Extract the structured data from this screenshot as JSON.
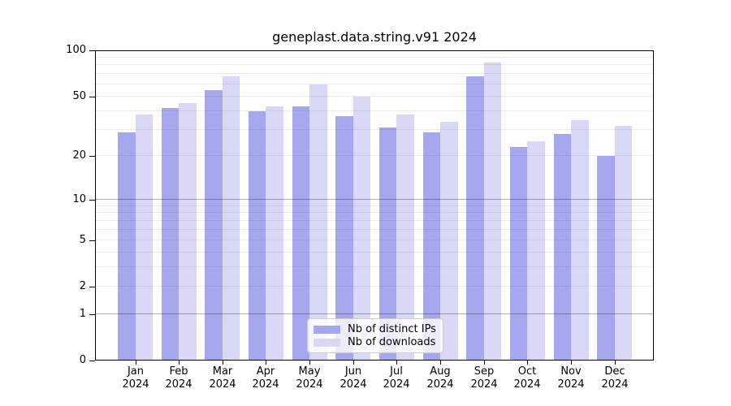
{
  "chart_data": {
    "type": "bar",
    "title": "geneplast.data.string.v91 2024",
    "months": [
      "Jan",
      "Feb",
      "Mar",
      "Apr",
      "May",
      "Jun",
      "Jul",
      "Aug",
      "Sep",
      "Oct",
      "Nov",
      "Dec"
    ],
    "year": "2024",
    "series": [
      {
        "name": "Nb of distinct IPs",
        "color": "#a7a7f0",
        "values": [
          29,
          42,
          55,
          40,
          43,
          37,
          31,
          29,
          68,
          23,
          28,
          20
        ]
      },
      {
        "name": "Nb of downloads",
        "color": "#d9d9f7",
        "values": [
          38,
          45,
          68,
          43,
          60,
          50,
          38,
          34,
          83,
          25,
          35,
          32
        ]
      }
    ],
    "y_scale": "log10(value+1)",
    "ylim": [
      0,
      100
    ],
    "y_ticks": [
      0,
      1,
      2,
      5,
      10,
      20,
      50,
      100
    ],
    "grid": "horizontal",
    "grid_minor_values": [
      2,
      3,
      4,
      5,
      6,
      7,
      8,
      9,
      20,
      30,
      40,
      50,
      60,
      70,
      80,
      90
    ],
    "grid_major_values": [
      1,
      10
    ],
    "legend_position": "lower-center"
  }
}
